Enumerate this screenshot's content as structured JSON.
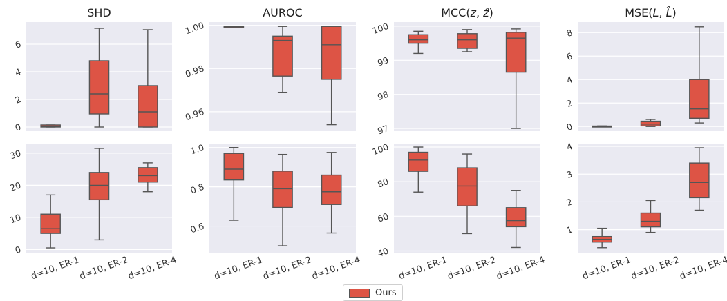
{
  "legend": {
    "label": "Ours",
    "color": "#dd5445",
    "edge": "#555555"
  },
  "chart_data": [
    {
      "type": "box",
      "title": "SHD",
      "row": 0,
      "col": 0,
      "ylim": [
        -0.3,
        7.6
      ],
      "yticks": [
        "0",
        "2",
        "4",
        "6"
      ],
      "categories": [
        "d=10, ER-1",
        "d=10, ER-2",
        "d=10, ER-4"
      ],
      "show_xticklabels": false,
      "boxes": [
        {
          "min": 0,
          "q1": 0,
          "median": 0.05,
          "q3": 0.15,
          "max": 0.15
        },
        {
          "min": 0,
          "q1": 0.95,
          "median": 2.4,
          "q3": 4.8,
          "max": 7.15
        },
        {
          "min": 0,
          "q1": 0,
          "median": 1.1,
          "q3": 3.0,
          "max": 7.05
        }
      ]
    },
    {
      "type": "box",
      "title": "AUROC",
      "row": 0,
      "col": 1,
      "ylim": [
        0.951,
        1.0015
      ],
      "yticks": [
        "0.96",
        "0.98",
        "1.00"
      ],
      "categories": [
        "d=10, ER-1",
        "d=10, ER-2",
        "d=10, ER-4"
      ],
      "show_xticklabels": false,
      "boxes": [
        {
          "min": 0.9995,
          "q1": 0.9995,
          "median": 0.9995,
          "q3": 0.9995,
          "max": 0.9995
        },
        {
          "min": 0.969,
          "q1": 0.9765,
          "median": 0.993,
          "q3": 0.995,
          "max": 0.9995
        },
        {
          "min": 0.954,
          "q1": 0.975,
          "median": 0.991,
          "q3": 0.9995,
          "max": 0.9995
        }
      ]
    },
    {
      "type": "box",
      "title": "MCC(z, ẑ)",
      "title_plain": "MCC(",
      "title_var1": "z",
      "title_sep": ", ",
      "title_var2": "ẑ",
      "title_close": ")",
      "row": 0,
      "col": 2,
      "ylim": [
        96.92,
        100.12
      ],
      "yticks": [
        "97",
        "98",
        "99",
        "100"
      ],
      "categories": [
        "d=10, ER-1",
        "d=10, ER-2",
        "d=10, ER-4"
      ],
      "show_xticklabels": false,
      "boxes": [
        {
          "min": 99.2,
          "q1": 99.5,
          "median": 99.6,
          "q3": 99.75,
          "max": 99.85
        },
        {
          "min": 99.25,
          "q1": 99.35,
          "median": 99.6,
          "q3": 99.78,
          "max": 99.9
        },
        {
          "min": 97.0,
          "q1": 98.65,
          "median": 99.65,
          "q3": 99.82,
          "max": 99.92
        }
      ]
    },
    {
      "type": "box",
      "title": "MSE(L, L̂)",
      "title_plain": "MSE(",
      "title_var1": "L",
      "title_sep": ", ",
      "title_var2": "L̂",
      "title_close": ")",
      "row": 0,
      "col": 3,
      "ylim": [
        -0.4,
        8.9
      ],
      "yticks": [
        "0",
        "2",
        "4",
        "6",
        "8"
      ],
      "categories": [
        "d=10, ER-1",
        "d=10, ER-2",
        "d=10, ER-4"
      ],
      "show_xticklabels": false,
      "boxes": [
        {
          "min": 0.0,
          "q1": 0.0,
          "median": 0.02,
          "q3": 0.04,
          "max": 0.05
        },
        {
          "min": 0.0,
          "q1": 0.05,
          "median": 0.2,
          "q3": 0.45,
          "max": 0.6
        },
        {
          "min": 0.3,
          "q1": 0.7,
          "median": 1.5,
          "q3": 4.0,
          "max": 8.5
        }
      ]
    },
    {
      "type": "box",
      "title": "",
      "row": 1,
      "col": 0,
      "ylim": [
        -1,
        33
      ],
      "yticks": [
        "0",
        "10",
        "20",
        "30"
      ],
      "categories": [
        "d=10, ER-1",
        "d=10, ER-2",
        "d=10, ER-4"
      ],
      "show_xticklabels": true,
      "boxes": [
        {
          "min": 0.5,
          "q1": 5,
          "median": 6.5,
          "q3": 11,
          "max": 17
        },
        {
          "min": 3,
          "q1": 15.5,
          "median": 20,
          "q3": 24,
          "max": 31.5
        },
        {
          "min": 18,
          "q1": 21,
          "median": 23,
          "q3": 25.5,
          "max": 27
        }
      ]
    },
    {
      "type": "box",
      "title": "",
      "row": 1,
      "col": 1,
      "ylim": [
        0.465,
        1.02
      ],
      "yticks": [
        "0.6",
        "0.8",
        "1.0"
      ],
      "categories": [
        "d=10, ER-1",
        "d=10, ER-2",
        "d=10, ER-4"
      ],
      "show_xticklabels": true,
      "boxes": [
        {
          "min": 0.63,
          "q1": 0.835,
          "median": 0.89,
          "q3": 0.97,
          "max": 1.0
        },
        {
          "min": 0.5,
          "q1": 0.695,
          "median": 0.79,
          "q3": 0.88,
          "max": 0.965
        },
        {
          "min": 0.565,
          "q1": 0.71,
          "median": 0.775,
          "q3": 0.86,
          "max": 0.975
        }
      ]
    },
    {
      "type": "box",
      "title": "",
      "row": 1,
      "col": 2,
      "ylim": [
        39,
        102
      ],
      "yticks": [
        "40",
        "60",
        "80",
        "100"
      ],
      "categories": [
        "d=10, ER-1",
        "d=10, ER-2",
        "d=10, ER-4"
      ],
      "show_xticklabels": true,
      "boxes": [
        {
          "min": 74,
          "q1": 86,
          "median": 92.5,
          "q3": 97,
          "max": 100
        },
        {
          "min": 50,
          "q1": 66,
          "median": 77.5,
          "q3": 88,
          "max": 96
        },
        {
          "min": 42,
          "q1": 54,
          "median": 57.5,
          "q3": 65,
          "max": 75
        }
      ]
    },
    {
      "type": "box",
      "title": "",
      "row": 1,
      "col": 3,
      "ylim": [
        0.17,
        4.1
      ],
      "yticks": [
        "1",
        "2",
        "3",
        "4"
      ],
      "categories": [
        "d=10, ER-1",
        "d=10, ER-2",
        "d=10, ER-4"
      ],
      "show_xticklabels": true,
      "boxes": [
        {
          "min": 0.35,
          "q1": 0.55,
          "median": 0.65,
          "q3": 0.75,
          "max": 1.05
        },
        {
          "min": 0.9,
          "q1": 1.1,
          "median": 1.3,
          "q3": 1.6,
          "max": 2.05
        },
        {
          "min": 1.7,
          "q1": 2.15,
          "median": 2.7,
          "q3": 3.4,
          "max": 3.95
        }
      ]
    }
  ]
}
